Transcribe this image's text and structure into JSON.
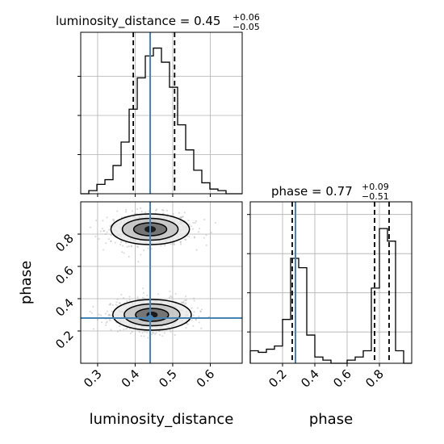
{
  "chart_data": [
    {
      "type": "histogram",
      "panel": "top-left",
      "title": {
        "param": "luminosity_distance",
        "value": "0.45",
        "plus": "+0.06",
        "minus": "−0.05"
      },
      "x_range": [
        0.255,
        0.685
      ],
      "bin_edges": [
        0.255,
        0.2765,
        0.298,
        0.3195,
        0.341,
        0.3625,
        0.384,
        0.4055,
        0.427,
        0.4485,
        0.47,
        0.4915,
        0.513,
        0.5345,
        0.556,
        0.5775,
        0.599,
        0.6205,
        0.642,
        0.6635,
        0.685
      ],
      "densities": [
        0,
        0.02,
        0.06,
        0.09,
        0.18,
        0.33,
        0.54,
        0.74,
        0.88,
        0.93,
        0.84,
        0.68,
        0.44,
        0.28,
        0.15,
        0.07,
        0.03,
        0.02,
        0,
        0
      ],
      "density_max": 1.0,
      "quantiles": [
        0.395,
        0.505
      ],
      "truth": 0.44,
      "grid": true,
      "truth_color": "#4682b4",
      "line_color": "#000000"
    },
    {
      "type": "histogram",
      "panel": "bottom-right",
      "title": {
        "param": "phase",
        "value": "0.77",
        "plus": "+0.09",
        "minus": "−0.51"
      },
      "x_range": [
        0.0,
        1.0
      ],
      "xticks": [
        "0.2",
        "0.4",
        "0.6",
        "0.8"
      ],
      "xlabel": "phase",
      "bin_edges": [
        0.0,
        0.05,
        0.1,
        0.15,
        0.2,
        0.25,
        0.3,
        0.35,
        0.4,
        0.45,
        0.5,
        0.55,
        0.6,
        0.65,
        0.7,
        0.75,
        0.8,
        0.85,
        0.9,
        0.95,
        1.0
      ],
      "densities": [
        0.08,
        0.07,
        0.09,
        0.11,
        0.28,
        0.67,
        0.61,
        0.18,
        0.04,
        0.02,
        0.0,
        0.0,
        0.02,
        0.04,
        0.08,
        0.48,
        0.86,
        0.78,
        0.08,
        0.0
      ],
      "density_max": 1.0,
      "quantiles": [
        0.26,
        0.77,
        0.86
      ],
      "truth": 0.28,
      "grid": true,
      "truth_color": "#4682b4",
      "line_color": "#000000"
    },
    {
      "type": "2d-density",
      "panel": "bottom-left",
      "x_range": [
        0.255,
        0.685
      ],
      "y_range": [
        0.0,
        1.0
      ],
      "xticks": [
        "0.3",
        "0.4",
        "0.5",
        "0.6"
      ],
      "yticks": [
        "0.2",
        "0.4",
        "0.6",
        "0.8"
      ],
      "xlabel": "luminosity_distance",
      "ylabel": "phase",
      "modes": [
        {
          "x": 0.44,
          "y": 0.83,
          "sx": 0.055,
          "sy": 0.05,
          "weight": 0.5
        },
        {
          "x": 0.445,
          "y": 0.3,
          "sx": 0.055,
          "sy": 0.05,
          "weight": 0.5
        }
      ],
      "contour_levels": [
        {
          "name": "outer",
          "scale": 1.9
        },
        {
          "name": "middle",
          "scale": 1.35
        },
        {
          "name": "inner",
          "scale": 0.8
        }
      ],
      "truth": {
        "x": 0.44,
        "y": 0.28
      },
      "grid": true,
      "truth_color": "#4682b4",
      "contour_color": "#000000"
    }
  ]
}
